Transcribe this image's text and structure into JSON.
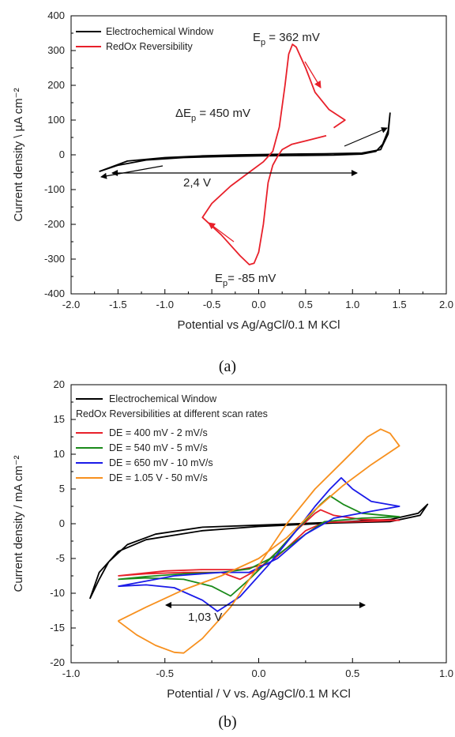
{
  "chart_data": [
    {
      "type": "line",
      "panel_label": "(a)",
      "xlabel": "Potential vs Ag/AgCl/0.1 M KCl",
      "ylabel": "Current density \\ µA cm⁻²",
      "xlim": [
        -2.0,
        2.0
      ],
      "ylim": [
        -400,
        400
      ],
      "xticks": [
        -2.0,
        -1.5,
        -1.0,
        -0.5,
        0.0,
        0.5,
        1.0,
        1.5,
        2.0
      ],
      "xtick_labels": [
        "-2.0",
        "-1.5",
        "-1.0",
        "-0.5",
        "0.0",
        "0.5",
        "1.0",
        "1.5",
        "2.0"
      ],
      "yticks": [
        -400,
        -300,
        -200,
        -100,
        0,
        100,
        200,
        300,
        400
      ],
      "ytick_labels": [
        "-400",
        "-300",
        "-200",
        "-100",
        "0",
        "100",
        "200",
        "300",
        "400"
      ],
      "legend_position": "top-left",
      "colors": {
        "window": "#000000",
        "redox": "#e8202a"
      },
      "series": [
        {
          "name": "Electrochemical Window",
          "color": "#000000",
          "points": [
            [
              -1.7,
              -48
            ],
            [
              -1.5,
              -30
            ],
            [
              -1.2,
              -15
            ],
            [
              -0.8,
              -8
            ],
            [
              -0.4,
              -5
            ],
            [
              0.0,
              -3
            ],
            [
              0.4,
              -2
            ],
            [
              0.8,
              -1
            ],
            [
              1.1,
              2
            ],
            [
              1.25,
              10
            ],
            [
              1.32,
              30
            ],
            [
              1.38,
              70
            ],
            [
              1.4,
              120
            ],
            [
              1.38,
              60
            ],
            [
              1.3,
              15
            ],
            [
              1.1,
              5
            ],
            [
              0.7,
              3
            ],
            [
              0.3,
              2
            ],
            [
              -0.2,
              0
            ],
            [
              -0.6,
              -3
            ],
            [
              -1.0,
              -8
            ],
            [
              -1.4,
              -18
            ],
            [
              -1.7,
              -48
            ]
          ]
        },
        {
          "name": "RedOx Reversibility",
          "color": "#e8202a",
          "points": [
            [
              0.72,
              55
            ],
            [
              0.5,
              40
            ],
            [
              0.35,
              30
            ],
            [
              0.25,
              15
            ],
            [
              0.2,
              -5
            ],
            [
              0.15,
              -30
            ],
            [
              0.1,
              -80
            ],
            [
              0.05,
              -200
            ],
            [
              0.0,
              -280
            ],
            [
              -0.05,
              -312
            ],
            [
              -0.1,
              -316
            ],
            [
              -0.2,
              -290
            ],
            [
              -0.4,
              -230
            ],
            [
              -0.6,
              -180
            ],
            [
              -0.5,
              -140
            ],
            [
              -0.3,
              -90
            ],
            [
              -0.1,
              -50
            ],
            [
              0.05,
              -20
            ],
            [
              0.15,
              10
            ],
            [
              0.22,
              80
            ],
            [
              0.28,
              200
            ],
            [
              0.32,
              290
            ],
            [
              0.36,
              318
            ],
            [
              0.4,
              310
            ],
            [
              0.5,
              250
            ],
            [
              0.6,
              180
            ],
            [
              0.75,
              130
            ],
            [
              0.92,
              100
            ],
            [
              0.8,
              78
            ]
          ]
        }
      ],
      "annotations": {
        "ep_ox": "E",
        "ep_ox_sub": "p",
        "ep_ox_value": " = 362 mV",
        "delta_ep": "ΔE",
        "delta_ep_sub": "p",
        "delta_ep_value": " = 450 mV",
        "ep_red": "E",
        "ep_red_sub": "p",
        "ep_red_value": "= -85 mV",
        "window_width": "2,4 V"
      }
    },
    {
      "type": "line",
      "panel_label": "(b)",
      "xlabel": "Potential / V vs. Ag/AgCl/0.1 M KCl",
      "ylabel": "Current density / mA cm⁻²",
      "xlim": [
        -1.0,
        1.0
      ],
      "ylim": [
        -20,
        20
      ],
      "xticks": [
        -1.0,
        -0.5,
        0.0,
        0.5,
        1.0
      ],
      "xtick_labels": [
        "-1.0",
        "-0.5",
        "0.0",
        "0.5",
        "1.0"
      ],
      "yticks": [
        -20,
        -15,
        -10,
        -5,
        0,
        5,
        10,
        15,
        20
      ],
      "ytick_labels": [
        "-20",
        "-15",
        "-10",
        "-5",
        "0",
        "5",
        "10",
        "15",
        "20"
      ],
      "legend_position": "top-left",
      "legend_subtitle": "RedOx Reversibilities at different scan rates",
      "series": [
        {
          "name": "Electrochemical Window",
          "color": "#000000",
          "points": [
            [
              -0.9,
              -10.8
            ],
            [
              -0.85,
              -8
            ],
            [
              -0.8,
              -5.5
            ],
            [
              -0.7,
              -3
            ],
            [
              -0.55,
              -1.5
            ],
            [
              -0.3,
              -0.5
            ],
            [
              0.0,
              -0.2
            ],
            [
              0.4,
              0.2
            ],
            [
              0.7,
              0.6
            ],
            [
              0.85,
              1.5
            ],
            [
              0.9,
              2.8
            ],
            [
              0.86,
              1.2
            ],
            [
              0.7,
              0.3
            ],
            [
              0.4,
              0.1
            ],
            [
              0.0,
              -0.4
            ],
            [
              -0.3,
              -1.0
            ],
            [
              -0.6,
              -2.3
            ],
            [
              -0.75,
              -4
            ],
            [
              -0.85,
              -7
            ],
            [
              -0.9,
              -10.8
            ]
          ]
        },
        {
          "name": "DE = 400 mV - 2 mV/s",
          "color": "#e8202a",
          "points": [
            [
              -0.75,
              -7.5
            ],
            [
              -0.6,
              -7.2
            ],
            [
              -0.4,
              -7.0
            ],
            [
              -0.2,
              -7.0
            ],
            [
              -0.1,
              -8.0
            ],
            [
              0.0,
              -6.5
            ],
            [
              0.1,
              -4
            ],
            [
              0.2,
              -1
            ],
            [
              0.3,
              1.5
            ],
            [
              0.33,
              2.0
            ],
            [
              0.4,
              1.2
            ],
            [
              0.55,
              0.6
            ],
            [
              0.75,
              0.5
            ],
            [
              0.55,
              0.3
            ],
            [
              0.35,
              0.2
            ],
            [
              0.25,
              -1.0
            ],
            [
              0.15,
              -3.5
            ],
            [
              0.05,
              -5.8
            ],
            [
              -0.1,
              -6.6
            ],
            [
              -0.3,
              -6.6
            ],
            [
              -0.5,
              -6.8
            ],
            [
              -0.75,
              -7.5
            ]
          ]
        },
        {
          "name": "DE = 540 mV - 5 mV/s",
          "color": "#1a8a1a",
          "points": [
            [
              -0.75,
              -8.0
            ],
            [
              -0.6,
              -7.8
            ],
            [
              -0.4,
              -8.0
            ],
            [
              -0.25,
              -9.0
            ],
            [
              -0.15,
              -10.4
            ],
            [
              -0.05,
              -8.0
            ],
            [
              0.1,
              -4
            ],
            [
              0.25,
              0.5
            ],
            [
              0.33,
              2.8
            ],
            [
              0.38,
              4.0
            ],
            [
              0.45,
              2.8
            ],
            [
              0.55,
              1.5
            ],
            [
              0.75,
              1.0
            ],
            [
              0.55,
              0.8
            ],
            [
              0.35,
              0.3
            ],
            [
              0.25,
              -1.5
            ],
            [
              0.1,
              -4.5
            ],
            [
              -0.05,
              -6.5
            ],
            [
              -0.2,
              -7.0
            ],
            [
              -0.4,
              -7.2
            ],
            [
              -0.6,
              -7.6
            ],
            [
              -0.75,
              -8.0
            ]
          ]
        },
        {
          "name": "DE = 650 mV - 10 mV/s",
          "color": "#1a1ae8",
          "points": [
            [
              -0.75,
              -9.0
            ],
            [
              -0.6,
              -8.8
            ],
            [
              -0.45,
              -9.2
            ],
            [
              -0.3,
              -11.0
            ],
            [
              -0.22,
              -12.6
            ],
            [
              -0.1,
              -10.5
            ],
            [
              0.05,
              -6
            ],
            [
              0.2,
              -1
            ],
            [
              0.3,
              2.5
            ],
            [
              0.38,
              5.0
            ],
            [
              0.44,
              6.6
            ],
            [
              0.5,
              5.0
            ],
            [
              0.6,
              3.2
            ],
            [
              0.75,
              2.5
            ],
            [
              0.6,
              1.8
            ],
            [
              0.4,
              0.8
            ],
            [
              0.25,
              -1.5
            ],
            [
              0.1,
              -5
            ],
            [
              -0.05,
              -7.0
            ],
            [
              -0.2,
              -7.0
            ],
            [
              -0.45,
              -7.5
            ],
            [
              -0.75,
              -9.0
            ]
          ]
        },
        {
          "name": "DE = 1.05 V - 50 mV/s",
          "color": "#f7901e",
          "points": [
            [
              -0.75,
              -14.0
            ],
            [
              -0.65,
              -16.0
            ],
            [
              -0.55,
              -17.5
            ],
            [
              -0.45,
              -18.5
            ],
            [
              -0.4,
              -18.6
            ],
            [
              -0.3,
              -16.5
            ],
            [
              -0.15,
              -12.0
            ],
            [
              0.0,
              -6.0
            ],
            [
              0.15,
              0.0
            ],
            [
              0.3,
              5.0
            ],
            [
              0.45,
              9.0
            ],
            [
              0.58,
              12.5
            ],
            [
              0.65,
              13.6
            ],
            [
              0.7,
              13.0
            ],
            [
              0.75,
              11.2
            ],
            [
              0.6,
              8.5
            ],
            [
              0.45,
              5.5
            ],
            [
              0.3,
              2.0
            ],
            [
              0.15,
              -2.0
            ],
            [
              0.0,
              -5.0
            ],
            [
              -0.2,
              -7.5
            ],
            [
              -0.4,
              -9.5
            ],
            [
              -0.6,
              -12.0
            ],
            [
              -0.75,
              -14.0
            ]
          ]
        }
      ],
      "annotations": {
        "window_width": "1,03 V"
      }
    }
  ]
}
